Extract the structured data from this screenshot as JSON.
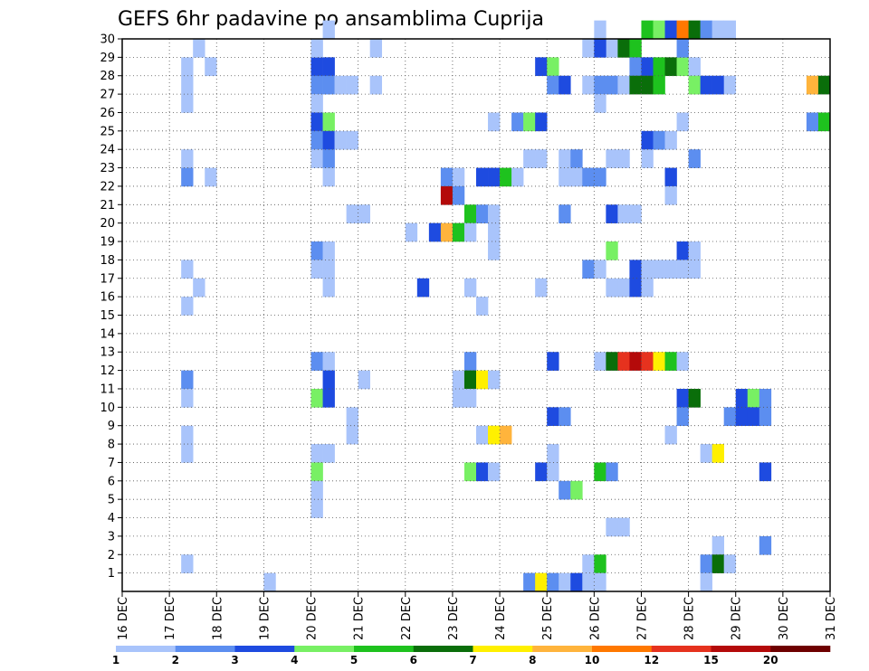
{
  "chart_data": {
    "type": "heatmap",
    "title": "GEFS 6hr padavine po ansamblima Cuprija",
    "x_tick_labels": [
      "16 DEC",
      "17 DEC",
      "18 DEC",
      "19 DEC",
      "20 DEC",
      "21 DEC",
      "22 DEC",
      "23 DEC",
      "24 DEC",
      "25 DEC",
      "26 DEC",
      "27 DEC",
      "28 DEC",
      "29 DEC",
      "30 DEC",
      "31 DEC"
    ],
    "y_tick_labels": [
      "1",
      "2",
      "3",
      "4",
      "5",
      "6",
      "7",
      "8",
      "9",
      "10",
      "11",
      "12",
      "13",
      "14",
      "15",
      "16",
      "17",
      "18",
      "19",
      "20",
      "21",
      "22",
      "23",
      "24",
      "25",
      "26",
      "27",
      "28",
      "29",
      "30"
    ],
    "x_range": [
      0,
      60
    ],
    "y_range": [
      0,
      30
    ],
    "grid": true,
    "legend_placement": "bottom",
    "legend_labels": [
      "1",
      "2",
      "3",
      "4",
      "5",
      "6",
      "7",
      "8",
      "10",
      "12",
      "15",
      "20"
    ],
    "legend_colors": [
      "#a9c4fb",
      "#5c8ef0",
      "#1e4be0",
      "#78f064",
      "#1ec21e",
      "#0a6e0a",
      "#fff000",
      "#ffb43c",
      "#ff7800",
      "#e6321e",
      "#b40a0a",
      "#6e0000"
    ],
    "cells": [
      [
        17,
        30,
        0
      ],
      [
        40,
        30,
        0
      ],
      [
        41,
        29,
        0
      ],
      [
        42,
        29,
        5
      ],
      [
        43,
        29,
        4
      ],
      [
        44,
        30,
        4
      ],
      [
        45,
        30,
        3
      ],
      [
        46,
        30,
        2
      ],
      [
        47,
        30,
        8
      ],
      [
        48,
        30,
        5
      ],
      [
        49,
        30,
        1
      ],
      [
        50,
        30,
        0
      ],
      [
        51,
        30,
        0
      ],
      [
        5,
        28,
        0
      ],
      [
        7,
        28,
        0
      ],
      [
        16,
        28,
        2
      ],
      [
        17,
        28,
        2
      ],
      [
        35,
        28,
        2
      ],
      [
        36,
        28,
        3
      ],
      [
        43,
        28,
        1
      ],
      [
        44,
        28,
        2
      ],
      [
        45,
        28,
        4
      ],
      [
        46,
        28,
        5
      ],
      [
        47,
        28,
        3
      ],
      [
        48,
        28,
        0
      ],
      [
        6,
        29,
        0
      ],
      [
        16,
        29,
        0
      ],
      [
        21,
        29,
        0
      ],
      [
        39,
        29,
        0
      ],
      [
        40,
        29,
        2
      ],
      [
        47,
        29,
        1
      ],
      [
        5,
        27,
        0
      ],
      [
        16,
        27,
        1
      ],
      [
        17,
        27,
        1
      ],
      [
        18,
        27,
        0
      ],
      [
        19,
        27,
        0
      ],
      [
        21,
        27,
        0
      ],
      [
        36,
        27,
        1
      ],
      [
        37,
        27,
        2
      ],
      [
        39,
        27,
        0
      ],
      [
        40,
        27,
        1
      ],
      [
        41,
        27,
        1
      ],
      [
        42,
        27,
        0
      ],
      [
        43,
        27,
        5
      ],
      [
        44,
        27,
        5
      ],
      [
        45,
        27,
        4
      ],
      [
        48,
        27,
        3
      ],
      [
        49,
        27,
        2
      ],
      [
        50,
        27,
        2
      ],
      [
        51,
        27,
        0
      ],
      [
        5,
        26,
        0
      ],
      [
        16,
        26,
        0
      ],
      [
        40,
        26,
        0
      ],
      [
        58,
        27,
        7
      ],
      [
        59,
        27,
        5
      ],
      [
        16,
        25,
        2
      ],
      [
        17,
        25,
        3
      ],
      [
        31,
        25,
        0
      ],
      [
        33,
        25,
        1
      ],
      [
        34,
        25,
        3
      ],
      [
        35,
        25,
        2
      ],
      [
        47,
        25,
        0
      ],
      [
        58,
        25,
        1
      ],
      [
        59,
        25,
        4
      ],
      [
        16,
        24,
        1
      ],
      [
        17,
        24,
        2
      ],
      [
        18,
        24,
        0
      ],
      [
        19,
        24,
        0
      ],
      [
        44,
        24,
        2
      ],
      [
        45,
        24,
        1
      ],
      [
        46,
        24,
        0
      ],
      [
        5,
        23,
        0
      ],
      [
        16,
        23,
        0
      ],
      [
        17,
        23,
        1
      ],
      [
        34,
        23,
        0
      ],
      [
        35,
        23,
        0
      ],
      [
        37,
        23,
        0
      ],
      [
        38,
        23,
        1
      ],
      [
        41,
        23,
        0
      ],
      [
        42,
        23,
        0
      ],
      [
        44,
        23,
        0
      ],
      [
        48,
        23,
        1
      ],
      [
        5,
        22,
        1
      ],
      [
        7,
        22,
        0
      ],
      [
        17,
        22,
        0
      ],
      [
        27,
        22,
        1
      ],
      [
        28,
        22,
        0
      ],
      [
        30,
        22,
        2
      ],
      [
        31,
        22,
        2
      ],
      [
        32,
        22,
        4
      ],
      [
        33,
        22,
        0
      ],
      [
        37,
        22,
        0
      ],
      [
        38,
        22,
        0
      ],
      [
        39,
        22,
        1
      ],
      [
        40,
        22,
        1
      ],
      [
        46,
        22,
        2
      ],
      [
        27,
        21,
        10
      ],
      [
        28,
        21,
        1
      ],
      [
        46,
        21,
        0
      ],
      [
        19,
        20,
        0
      ],
      [
        20,
        20,
        0
      ],
      [
        29,
        20,
        4
      ],
      [
        30,
        20,
        1
      ],
      [
        31,
        20,
        0
      ],
      [
        37,
        20,
        1
      ],
      [
        41,
        20,
        2
      ],
      [
        42,
        20,
        0
      ],
      [
        43,
        20,
        0
      ],
      [
        24,
        19,
        0
      ],
      [
        26,
        19,
        2
      ],
      [
        27,
        19,
        7
      ],
      [
        28,
        19,
        4
      ],
      [
        29,
        19,
        0
      ],
      [
        31,
        19,
        0
      ],
      [
        16,
        18,
        1
      ],
      [
        17,
        18,
        0
      ],
      [
        31,
        18,
        0
      ],
      [
        41,
        18,
        3
      ],
      [
        47,
        18,
        2
      ],
      [
        48,
        18,
        0
      ],
      [
        5,
        17,
        0
      ],
      [
        16,
        17,
        0
      ],
      [
        17,
        17,
        0
      ],
      [
        39,
        17,
        1
      ],
      [
        40,
        17,
        0
      ],
      [
        43,
        17,
        2
      ],
      [
        44,
        17,
        0
      ],
      [
        45,
        17,
        0
      ],
      [
        46,
        17,
        0
      ],
      [
        47,
        17,
        0
      ],
      [
        48,
        17,
        0
      ],
      [
        6,
        16,
        0
      ],
      [
        17,
        16,
        0
      ],
      [
        25,
        16,
        2
      ],
      [
        29,
        16,
        0
      ],
      [
        35,
        16,
        0
      ],
      [
        41,
        16,
        0
      ],
      [
        42,
        16,
        0
      ],
      [
        43,
        16,
        2
      ],
      [
        44,
        16,
        0
      ],
      [
        5,
        15,
        0
      ],
      [
        30,
        15,
        0
      ],
      [
        16,
        12,
        1
      ],
      [
        17,
        12,
        0
      ],
      [
        29,
        12,
        1
      ],
      [
        36,
        12,
        2
      ],
      [
        40,
        12,
        0
      ],
      [
        41,
        12,
        5
      ],
      [
        42,
        12,
        9
      ],
      [
        43,
        12,
        10
      ],
      [
        44,
        12,
        9
      ],
      [
        45,
        12,
        6
      ],
      [
        46,
        12,
        4
      ],
      [
        47,
        12,
        0
      ],
      [
        5,
        11,
        1
      ],
      [
        17,
        11,
        2
      ],
      [
        20,
        11,
        0
      ],
      [
        28,
        11,
        0
      ],
      [
        29,
        11,
        5
      ],
      [
        30,
        11,
        6
      ],
      [
        31,
        11,
        0
      ],
      [
        5,
        10,
        0
      ],
      [
        16,
        10,
        3
      ],
      [
        17,
        10,
        2
      ],
      [
        28,
        10,
        0
      ],
      [
        29,
        10,
        0
      ],
      [
        47,
        10,
        2
      ],
      [
        48,
        10,
        5
      ],
      [
        52,
        10,
        2
      ],
      [
        53,
        10,
        3
      ],
      [
        54,
        10,
        1
      ],
      [
        19,
        9,
        0
      ],
      [
        36,
        9,
        2
      ],
      [
        37,
        9,
        1
      ],
      [
        47,
        9,
        1
      ],
      [
        51,
        9,
        1
      ],
      [
        52,
        9,
        2
      ],
      [
        53,
        9,
        2
      ],
      [
        54,
        9,
        1
      ],
      [
        5,
        8,
        0
      ],
      [
        19,
        8,
        0
      ],
      [
        30,
        8,
        0
      ],
      [
        31,
        8,
        6
      ],
      [
        32,
        8,
        7
      ],
      [
        46,
        8,
        0
      ],
      [
        5,
        7,
        0
      ],
      [
        16,
        7,
        0
      ],
      [
        17,
        7,
        0
      ],
      [
        36,
        7,
        0
      ],
      [
        49,
        7,
        0
      ],
      [
        50,
        7,
        6
      ],
      [
        16,
        6,
        3
      ],
      [
        29,
        6,
        3
      ],
      [
        30,
        6,
        2
      ],
      [
        31,
        6,
        0
      ],
      [
        35,
        6,
        2
      ],
      [
        36,
        6,
        0
      ],
      [
        40,
        6,
        4
      ],
      [
        41,
        6,
        1
      ],
      [
        54,
        6,
        2
      ],
      [
        16,
        5,
        0
      ],
      [
        37,
        5,
        1
      ],
      [
        38,
        5,
        3
      ],
      [
        16,
        4,
        0
      ],
      [
        41,
        3,
        0
      ],
      [
        42,
        3,
        0
      ],
      [
        50,
        2,
        0
      ],
      [
        54,
        2,
        1
      ],
      [
        5,
        1,
        0
      ],
      [
        39,
        1,
        0
      ],
      [
        40,
        1,
        4
      ],
      [
        49,
        1,
        1
      ],
      [
        50,
        1,
        5
      ],
      [
        51,
        1,
        0
      ],
      [
        12,
        0,
        0
      ],
      [
        34,
        0,
        1
      ],
      [
        35,
        0,
        6
      ],
      [
        36,
        0,
        1
      ],
      [
        37,
        0,
        0
      ],
      [
        38,
        0,
        2
      ],
      [
        39,
        0,
        0
      ],
      [
        40,
        0,
        0
      ],
      [
        49,
        0,
        0
      ]
    ]
  }
}
